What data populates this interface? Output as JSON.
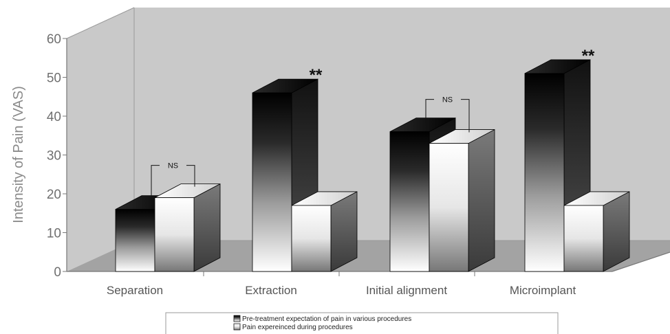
{
  "chart_data": {
    "type": "bar",
    "ylabel": "Intensity of Pain (VAS)",
    "ylim": [
      0,
      60
    ],
    "yticks": [
      "0",
      "10",
      "20",
      "30",
      "40",
      "50",
      "60"
    ],
    "categories": [
      "Separation",
      "Extraction",
      "Initial alignment",
      "Microimplant"
    ],
    "series": [
      {
        "name": "Pre-treatment expectation of pain in various procedures",
        "values": [
          16,
          46,
          36,
          51
        ]
      },
      {
        "name": "Pain expereinced during procedures",
        "values": [
          19,
          17,
          33,
          17
        ]
      }
    ],
    "annotations": [
      {
        "category": "Separation",
        "text": "NS",
        "kind": "bracket"
      },
      {
        "category": "Extraction",
        "text": "**",
        "kind": "star"
      },
      {
        "category": "Initial alignment",
        "text": "NS",
        "kind": "bracket"
      },
      {
        "category": "Microimplant",
        "text": "**",
        "kind": "star"
      }
    ],
    "legend_position": "bottom",
    "style": "3d",
    "colors": {
      "wall": "#c9c9c9",
      "floor": "#a3a3a3",
      "dark": "#1a1a1a",
      "light": "#ffffff",
      "side": "#4a4a4a",
      "axis": "#777777"
    }
  }
}
